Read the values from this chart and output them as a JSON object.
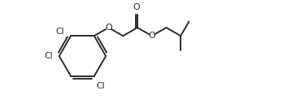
{
  "bg_color": "#ffffff",
  "line_color": "#2a2a2a",
  "text_color": "#2a2a2a",
  "lw": 1.4,
  "fs": 7.8,
  "figsize": [
    3.64,
    1.38
  ],
  "dpi": 100,
  "xlim": [
    0.0,
    11.5
  ],
  "ylim": [
    0.3,
    5.3
  ]
}
